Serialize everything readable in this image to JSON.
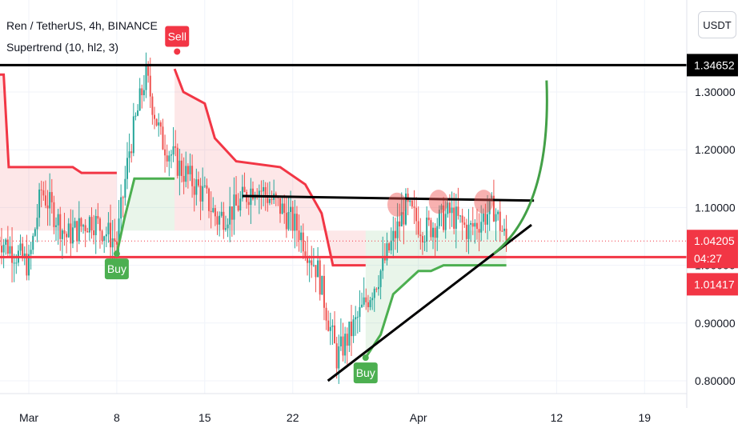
{
  "header": {
    "symbol_line": "Ren / TetherUS, 4h, BINANCE",
    "indicator_line": "Supertrend (10, hl2, 3)",
    "currency_button": "USDT"
  },
  "colors": {
    "background": "#ffffff",
    "grid": "#f0f3fa",
    "bull_candle": "#26a69a",
    "bear_candle": "#ef5350",
    "supertrend_up": "#4caf50",
    "supertrend_down": "#f23645",
    "drawing_black": "#000000",
    "projection_green": "#43a047",
    "current_price_red": "#f23645"
  },
  "chart_data": {
    "type": "candlestick",
    "x_axis": {
      "ticks": [
        "Mar",
        "8",
        "15",
        "22",
        "Apr",
        "12",
        "19"
      ]
    },
    "y_axis": {
      "ticks": [
        "0.80000",
        "0.90000",
        "1.00000",
        "1.10000",
        "1.20000",
        "1.30000"
      ],
      "range": [
        0.76,
        1.38
      ]
    },
    "price_labels": [
      {
        "text": "1.34652",
        "value": 1.34652,
        "style": "black"
      },
      {
        "text": "1.04205",
        "value": 1.04205,
        "style": "red"
      },
      {
        "text": "04:27",
        "style": "red-countdown"
      },
      {
        "text": "1.01417",
        "value": 1.01417,
        "style": "red"
      }
    ],
    "signals": [
      {
        "label": "Sell",
        "style": "red"
      },
      {
        "label": "Buy",
        "style": "green"
      },
      {
        "label": "Buy",
        "style": "green"
      }
    ],
    "supertrend": [
      {
        "from": "Feb 26",
        "to": "Mar 8",
        "direction": "down",
        "values": [
          1.33,
          1.33,
          1.17,
          1.17,
          1.16,
          1.13
        ]
      },
      {
        "from": "Mar 8",
        "to": "Mar 11",
        "direction": "up",
        "values": [
          1.02,
          1.08,
          1.15,
          1.15
        ]
      },
      {
        "from": "Mar 11",
        "to": "Mar 25",
        "direction": "down",
        "values": [
          1.34,
          1.3,
          1.22,
          1.18,
          1.17,
          1.14,
          1.0
        ]
      },
      {
        "from": "Mar 25",
        "to": "Apr 7",
        "direction": "up",
        "values": [
          0.84,
          0.95,
          0.99,
          1.0,
          1.01,
          1.0,
          1.0
        ]
      }
    ],
    "drawings": [
      {
        "type": "horizontal_line",
        "value": 1.34652,
        "color": "black"
      },
      {
        "type": "horizontal_line",
        "value": 1.01417,
        "color": "red"
      },
      {
        "type": "trendline",
        "name": "neckline",
        "from": [
          "Mar 17",
          1.12
        ],
        "to": [
          "Apr 10",
          1.11
        ]
      },
      {
        "type": "trendline",
        "name": "ascending support",
        "from": [
          "Mar 24",
          0.8
        ],
        "to": [
          "Apr 10",
          1.07
        ]
      },
      {
        "type": "curve",
        "name": "parabolic projection",
        "color": "green"
      },
      {
        "type": "markers",
        "name": "triple top",
        "count": 3
      }
    ]
  }
}
